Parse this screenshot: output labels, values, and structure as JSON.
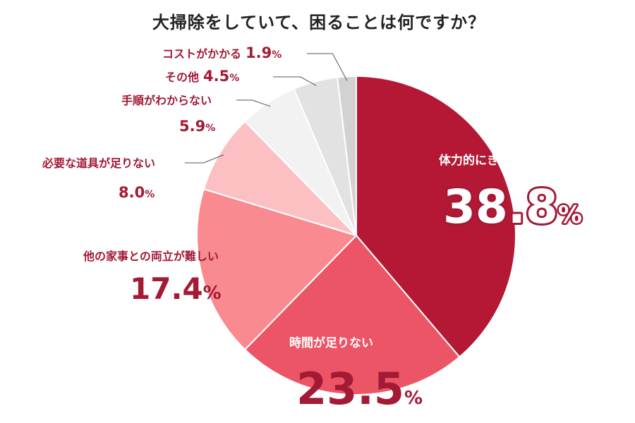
{
  "chart_data": {
    "type": "pie",
    "title": "大掃除をしていて、困ることは何ですか？",
    "unit": "%",
    "slices": [
      {
        "label": "体力的にきつい",
        "value": 38.8,
        "color": "#b51834"
      },
      {
        "label": "時間が足りない",
        "value": 23.5,
        "color": "#ec5566"
      },
      {
        "label": "他の家事との両立が難しい",
        "value": 17.4,
        "color": "#f88a90"
      },
      {
        "label": "必要な道具が足りない",
        "value": 8.0,
        "color": "#fcc0c3"
      },
      {
        "label": "手順がわからない",
        "value": 5.9,
        "color": "#f2f2f2"
      },
      {
        "label": "その他",
        "value": 4.5,
        "color": "#e2e2e2"
      },
      {
        "label": "コストがかかる",
        "value": 1.9,
        "color": "#d2d2d2"
      }
    ],
    "value_text": [
      "38.8",
      "23.5",
      "17.4",
      "8.0",
      "5.9",
      "4.5",
      "1.9"
    ]
  }
}
